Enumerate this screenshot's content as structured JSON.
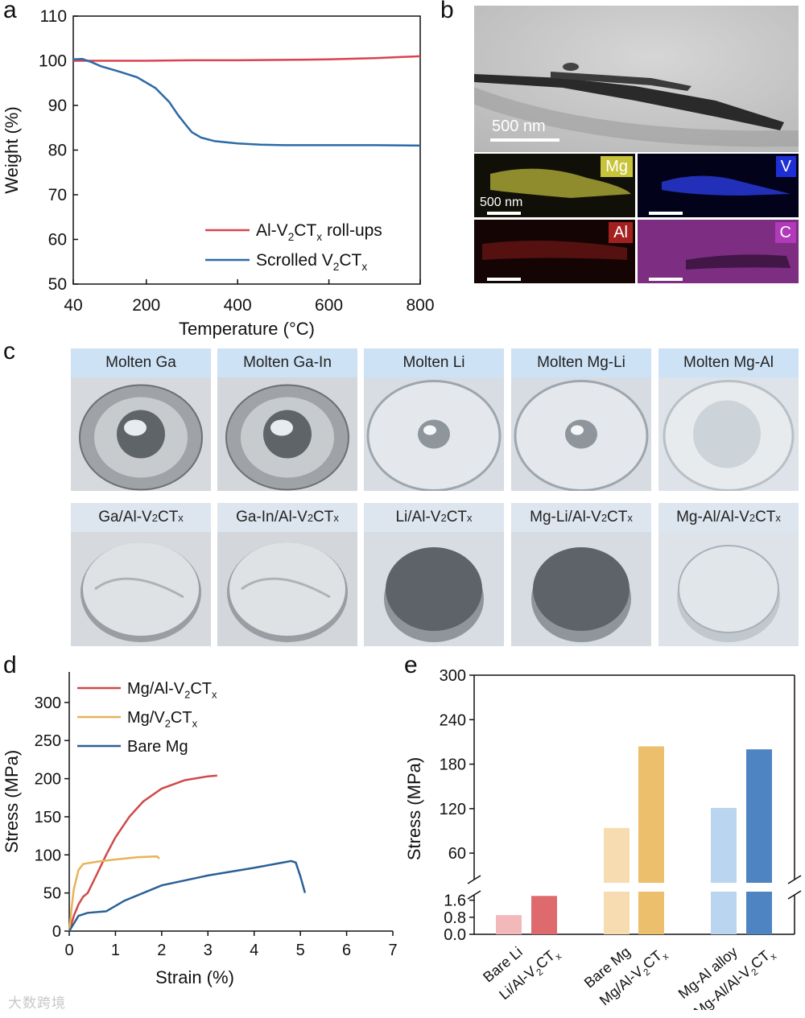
{
  "panels": {
    "a": "a",
    "b": "b",
    "c": "c",
    "d": "d",
    "e": "e"
  },
  "chart_a": {
    "type": "line",
    "xlabel": "Temperature (°C)",
    "ylabel": "Weight (%)",
    "xlim": [
      40,
      800
    ],
    "ylim": [
      50,
      110
    ],
    "xticks": [
      40,
      200,
      400,
      600,
      800
    ],
    "yticks": [
      50,
      60,
      70,
      80,
      90,
      100,
      110
    ],
    "legend_position": "bottom-right",
    "series": [
      {
        "name_main": "Al-V",
        "name_sub1": "2",
        "name_mid": "CT",
        "name_sub2": "x",
        "name_tail": " roll-ups",
        "color": "#d9424f",
        "x": [
          40,
          100,
          200,
          300,
          400,
          500,
          600,
          700,
          800
        ],
        "y": [
          100.0,
          100.0,
          100.0,
          100.1,
          100.1,
          100.2,
          100.3,
          100.6,
          101.0
        ]
      },
      {
        "name_main": "Scrolled V",
        "name_sub1": "2",
        "name_mid": "CT",
        "name_sub2": "x",
        "name_tail": "",
        "color": "#2c6aa6",
        "x": [
          40,
          60,
          80,
          100,
          140,
          180,
          220,
          250,
          270,
          290,
          300,
          320,
          350,
          400,
          450,
          500,
          600,
          700,
          800
        ],
        "y": [
          100.3,
          100.4,
          99.7,
          98.8,
          97.6,
          96.3,
          93.9,
          90.8,
          87.8,
          85.2,
          84.0,
          82.8,
          82.0,
          81.5,
          81.2,
          81.1,
          81.1,
          81.1,
          81.0
        ]
      }
    ]
  },
  "panel_b": {
    "tem_scale": "500 nm",
    "eds_scale": "500 nm",
    "maps": [
      {
        "element": "Mg",
        "tag_bg": "#c8c43a",
        "tag_fg": "#ffffff",
        "map_color": "#b8b63a"
      },
      {
        "element": "V",
        "tag_bg": "#1f2fd6",
        "tag_fg": "#ffffff",
        "map_color": "#2a3be0"
      },
      {
        "element": "Al",
        "tag_bg": "#a32020",
        "tag_fg": "#ffffff",
        "map_color": "#8a1c1c"
      },
      {
        "element": "C",
        "tag_bg": "#b03ab8",
        "tag_fg": "#ffffff",
        "map_color": "#a63aa8"
      }
    ]
  },
  "panel_c": {
    "top_row": [
      "Molten Ga",
      "Molten Ga-In",
      "Molten Li",
      "Molten Mg-Li",
      "Molten Mg-Al"
    ],
    "bottom_row": [
      {
        "main": "Ga/Al-V",
        "sub1": "2",
        "mid": "CT",
        "sub2": "x"
      },
      {
        "main": "Ga-In/Al-V",
        "sub1": "2",
        "mid": "CT",
        "sub2": "x"
      },
      {
        "main": "Li/Al-V",
        "sub1": "2",
        "mid": "CT",
        "sub2": "x"
      },
      {
        "main": "Mg-Li/Al-V",
        "sub1": "2",
        "mid": "CT",
        "sub2": "x"
      },
      {
        "main": "Mg-Al/Al-V",
        "sub1": "2",
        "mid": "CT",
        "sub2": "x"
      }
    ]
  },
  "chart_d": {
    "type": "line",
    "xlabel": "Strain (%)",
    "ylabel": "Stress (MPa)",
    "xlim": [
      0,
      7
    ],
    "ylim": [
      0,
      340
    ],
    "xticks": [
      0,
      1,
      2,
      3,
      4,
      5,
      6,
      7
    ],
    "yticks": [
      0,
      50,
      100,
      150,
      200,
      250,
      300
    ],
    "legend_position": "top-left",
    "series": [
      {
        "name_main": "Mg/Al-V",
        "name_sub1": "2",
        "name_mid": "CT",
        "name_sub2": "x",
        "color": "#cf4a4a",
        "x": [
          0,
          0.1,
          0.2,
          0.3,
          0.4,
          0.6,
          0.8,
          1.0,
          1.3,
          1.6,
          2.0,
          2.5,
          3.0,
          3.2
        ],
        "y": [
          0,
          20,
          35,
          45,
          50,
          75,
          100,
          123,
          150,
          170,
          187,
          198,
          203,
          204
        ]
      },
      {
        "name_main": "Mg/V",
        "name_sub1": "2",
        "name_mid": "CT",
        "name_sub2": "x",
        "color": "#e8b35a",
        "x": [
          0,
          0.05,
          0.1,
          0.2,
          0.3,
          0.4,
          0.6,
          1.0,
          1.5,
          1.9,
          1.95
        ],
        "y": [
          0,
          30,
          55,
          80,
          88,
          89,
          91,
          94,
          97,
          98,
          95
        ]
      },
      {
        "name_main": "Bare Mg",
        "name_sub1": "",
        "name_mid": "",
        "name_sub2": "",
        "color": "#2b5f97",
        "x": [
          0,
          0.2,
          0.4,
          0.8,
          1.2,
          2.0,
          3.0,
          4.0,
          4.8,
          4.9,
          5.0,
          5.1
        ],
        "y": [
          0,
          20,
          24,
          26,
          40,
          60,
          73,
          83,
          92,
          90,
          72,
          50
        ]
      }
    ]
  },
  "chart_e": {
    "type": "bar",
    "ylabel": "Stress (MPa)",
    "lower_yticks": [
      "0.0",
      "0.8",
      "1.6"
    ],
    "upper_yticks": [
      "60",
      "120",
      "180",
      "240",
      "300"
    ],
    "lower_range": [
      0,
      2.0
    ],
    "upper_range": [
      20,
      300
    ],
    "categories": [
      {
        "label": "Bare Li",
        "value": 0.9,
        "color": "#f2b8ba"
      },
      {
        "main": "Li/Al-V",
        "sub1": "2",
        "mid": "CT",
        "sub2": "x",
        "value": 1.8,
        "color": "#de6a6e"
      },
      {
        "label": "Bare Mg",
        "value": 94,
        "color": "#f6dcb0"
      },
      {
        "main": "Mg/Al-V",
        "sub1": "2",
        "mid": "CT",
        "sub2": "x",
        "value": 204,
        "color": "#ecbf6c"
      },
      {
        "label": "Mg-Al alloy",
        "value": 121,
        "color": "#b9d5ef"
      },
      {
        "main": "Mg-Al/Al-V",
        "sub1": "2",
        "mid": "CT",
        "sub2": "x",
        "value": 200,
        "color": "#4f84c2"
      }
    ]
  },
  "watermark": "大数跨境"
}
